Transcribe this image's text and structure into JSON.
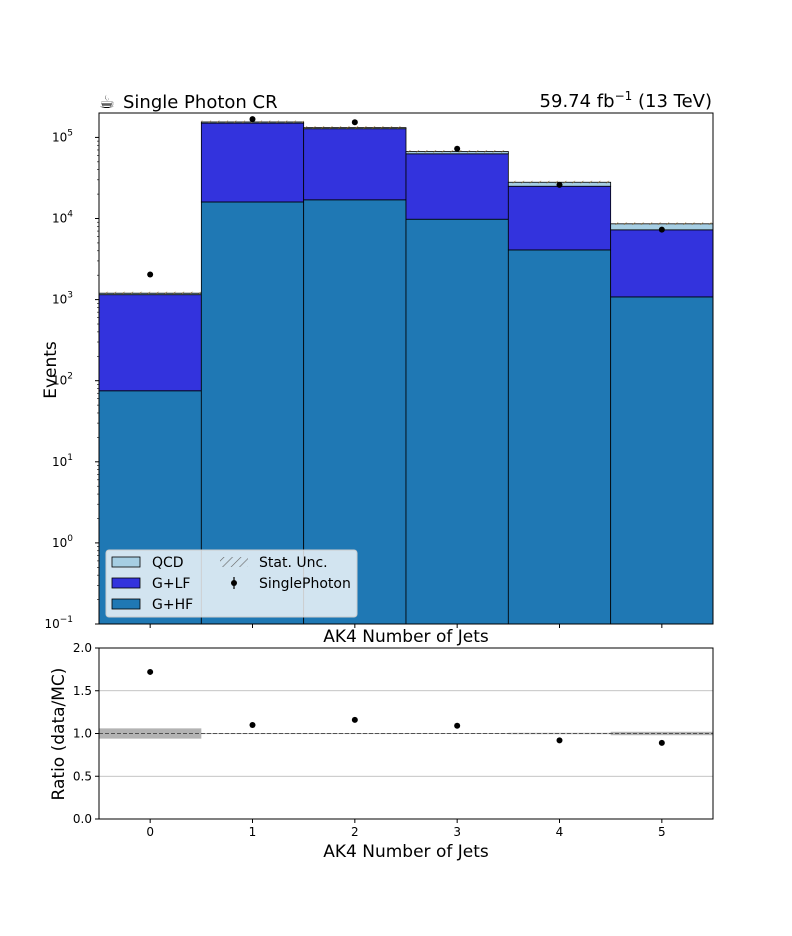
{
  "header": {
    "title_icon": "coffee-cup-icon",
    "title_glyph": "☕",
    "title": "Single Photon CR",
    "lumi": "59.74 fb",
    "lumi_exp": "−1",
    "energy": "(13 TeV)"
  },
  "colors": {
    "qcd": "#a6cee3",
    "g_lf": "#3333dd",
    "g_hf": "#1f78b4",
    "data": "#000000",
    "ratio_band": "#b3b3b3",
    "unc_hatch": "#8c6d31"
  },
  "chart_data": [
    {
      "type": "bar",
      "stacked": true,
      "yscale": "log",
      "ylim": [
        0.1,
        200000
      ],
      "xlim": [
        -0.5,
        5.5
      ],
      "categories": [
        "0",
        "1",
        "2",
        "3",
        "4",
        "5"
      ],
      "x": [
        0,
        1,
        2,
        3,
        4,
        5
      ],
      "xlabel": "AK4 Number of Jets",
      "ylabel": "Events",
      "yticks": [
        "10",
        "10",
        "10",
        "10",
        "10",
        "10",
        "10"
      ],
      "ytick_exps": [
        "−1",
        "0",
        "1",
        "2",
        "3",
        "4",
        "5"
      ],
      "xticks": [
        "0",
        "1",
        "2",
        "3",
        "4",
        "5"
      ],
      "series": [
        {
          "name": "G+HF",
          "values": [
            75,
            16000,
            17000,
            9800,
            4100,
            1080
          ]
        },
        {
          "name": "G+LF",
          "values": [
            1075,
            134000,
            111000,
            53000,
            20900,
            6170
          ]
        },
        {
          "name": "QCD",
          "values": [
            50,
            5000,
            4000,
            4200,
            3000,
            1350
          ]
        }
      ],
      "data": {
        "name": "SinglePhoton",
        "values": [
          2040,
          168000,
          154000,
          72500,
          26000,
          7300
        ]
      },
      "stat_unc_label": "Stat. Unc.",
      "legend": {
        "placement": "lower-left",
        "entries": [
          "QCD",
          "G+LF",
          "G+HF",
          "Stat. Unc.",
          "SinglePhoton"
        ]
      }
    },
    {
      "type": "scatter",
      "xlim": [
        -0.5,
        5.5
      ],
      "ylim": [
        0.0,
        2.0
      ],
      "x": [
        0,
        1,
        2,
        3,
        4,
        5
      ],
      "ratio": [
        1.72,
        1.1,
        1.16,
        1.09,
        0.92,
        0.89
      ],
      "ratio_err": [
        0.02,
        0.005,
        0.005,
        0.005,
        0.006,
        0.01
      ],
      "unc_band": [
        0.06,
        0.005,
        0.005,
        0.006,
        0.008,
        0.02
      ],
      "xlabel": "AK4 Number of Jets",
      "ylabel": "Ratio (data/MC)",
      "yticks": [
        "0.0",
        "0.5",
        "1.0",
        "1.5",
        "2.0"
      ],
      "ytick_values": [
        0.0,
        0.5,
        1.0,
        1.5,
        2.0
      ],
      "xticks": [
        "0",
        "1",
        "2",
        "3",
        "4",
        "5"
      ],
      "grid": true,
      "reference_line": 1.0
    }
  ]
}
